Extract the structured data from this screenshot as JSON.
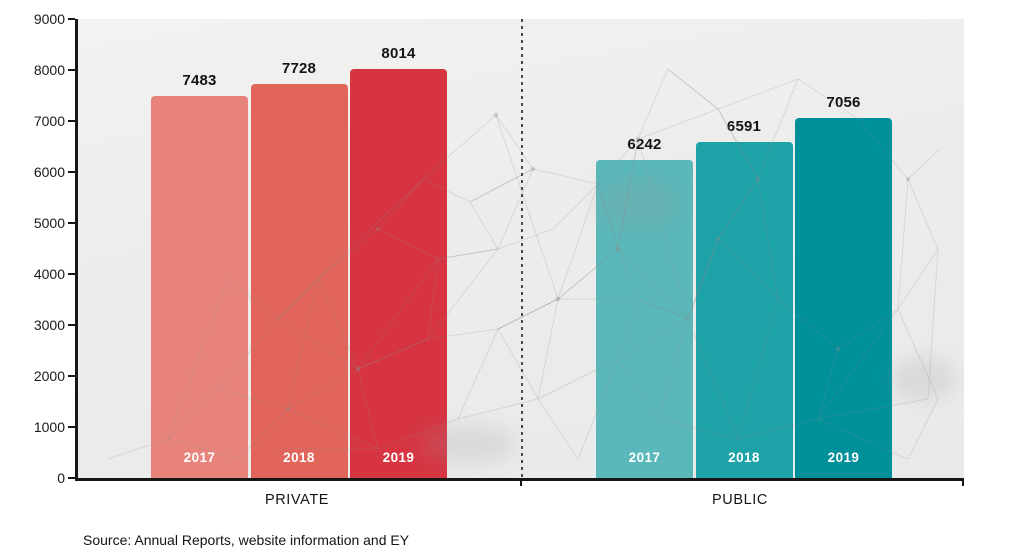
{
  "chart_data": {
    "type": "bar",
    "title": "",
    "xlabel": "",
    "ylabel": "",
    "ylim": [
      0,
      9000
    ],
    "yticks": [
      0,
      1000,
      2000,
      3000,
      4000,
      5000,
      6000,
      7000,
      8000,
      9000
    ],
    "grid": false,
    "legend_position": "none",
    "categories": [
      "2017",
      "2018",
      "2019"
    ],
    "groups": [
      {
        "label": "PRIVATE",
        "values": [
          7483,
          7728,
          8014
        ],
        "bar_colors": [
          "#e7837b",
          "#e2655b",
          "#d63441"
        ]
      },
      {
        "label": "PUBLIC",
        "values": [
          6242,
          6591,
          7056
        ],
        "bar_colors": [
          "#5ab8ba",
          "#1da2a8",
          "#00909a"
        ]
      }
    ],
    "bar_year_label_color": "#ffffff",
    "divider_between_groups": "dashed-vertical-line"
  },
  "source_note": "Source: Annual Reports, website information and EY",
  "colors": {
    "axis": "#161616",
    "tick_label": "#1a1a1a",
    "value_label": "#141414",
    "plot_background": "#ececeb",
    "divider": "#4a4a4a"
  }
}
